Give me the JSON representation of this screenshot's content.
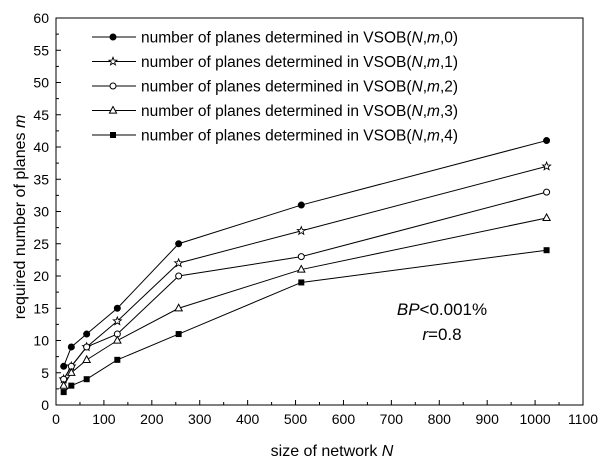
{
  "chart_data": {
    "type": "line",
    "xlabel_prefix": "size of network ",
    "xlabel_var": "N",
    "ylabel_prefix": "required number of planes ",
    "ylabel_var": "m",
    "xlim": [
      0,
      1100
    ],
    "ylim": [
      0,
      60
    ],
    "xticks": [
      0,
      100,
      200,
      300,
      400,
      500,
      600,
      700,
      800,
      900,
      1000,
      1100
    ],
    "yticks": [
      0,
      5,
      10,
      15,
      20,
      25,
      30,
      35,
      40,
      45,
      50,
      55,
      60
    ],
    "grid": false,
    "legend_position": "top-left",
    "x": [
      16,
      32,
      64,
      128,
      256,
      512,
      1024
    ],
    "series": [
      {
        "name": "number of planes determined in VSOB(N,m,0)",
        "marker": "filled-circle",
        "values": [
          6,
          9,
          11,
          15,
          25,
          31,
          41
        ]
      },
      {
        "name": "number of planes determined in VSOB(N,m,1)",
        "marker": "star",
        "values": [
          4,
          6,
          9,
          13,
          22,
          27,
          37
        ]
      },
      {
        "name": "number of planes determined in VSOB(N,m,2)",
        "marker": "open-circle",
        "values": [
          4,
          6,
          9,
          11,
          20,
          23,
          33
        ]
      },
      {
        "name": "number of planes determined in VSOB(N,m,3)",
        "marker": "open-triangle",
        "values": [
          3,
          5,
          7,
          10,
          15,
          21,
          29
        ]
      },
      {
        "name": "number of planes determined in VSOB(N,m,4)",
        "marker": "filled-square",
        "values": [
          2,
          3,
          4,
          7,
          11,
          19,
          24
        ]
      }
    ],
    "legend_labels": [
      {
        "pre": "number of planes determined in VSOB(",
        "var": "N",
        "mid": ",",
        "var2": "m",
        "post": ",0)"
      },
      {
        "pre": "number of planes determined in VSOB(",
        "var": "N",
        "mid": ",",
        "var2": "m",
        "post": ",1)"
      },
      {
        "pre": "number of planes determined in VSOB(",
        "var": "N",
        "mid": ",",
        "var2": "m",
        "post": ",2)"
      },
      {
        "pre": "number of planes determined in VSOB(",
        "var": "N",
        "mid": ",",
        "var2": "m",
        "post": ",3)"
      },
      {
        "pre": "number of planes determined in VSOB(",
        "var": "N",
        "mid": ",",
        "var2": "m",
        "post": ",4)"
      }
    ],
    "annotations": [
      {
        "var": "BP",
        "text": "<0.001%"
      },
      {
        "var": "r",
        "text": "=0.8"
      }
    ]
  }
}
